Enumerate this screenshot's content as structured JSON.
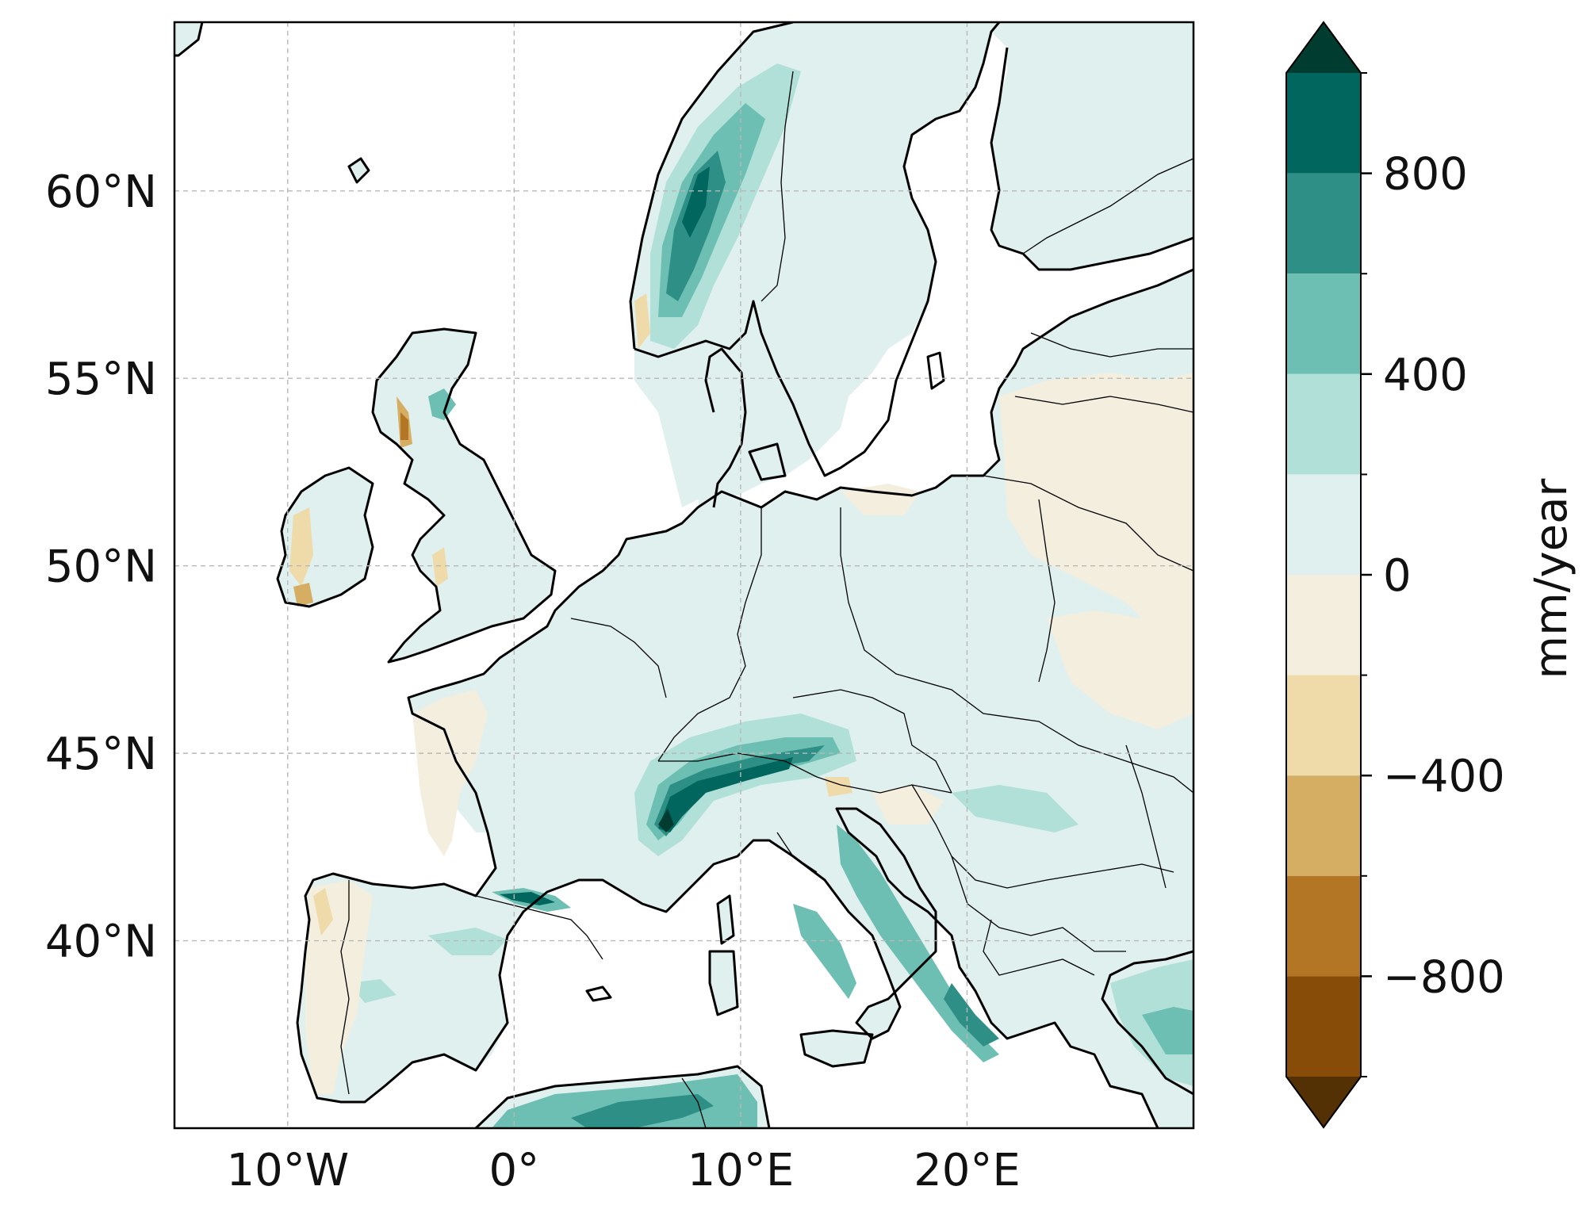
{
  "map": {
    "lon_range": [
      -15,
      30
    ],
    "lat_range": [
      35,
      64.5
    ],
    "lon_ticks": [
      {
        "value": -10,
        "label": "10°W"
      },
      {
        "value": 0,
        "label": "0°"
      },
      {
        "value": 10,
        "label": "10°E"
      },
      {
        "value": 20,
        "label": "20°E"
      }
    ],
    "lat_ticks": [
      {
        "value": 40,
        "label": "40°N"
      },
      {
        "value": 45,
        "label": "45°N"
      },
      {
        "value": 50,
        "label": "50°N"
      },
      {
        "value": 55,
        "label": "55°N"
      },
      {
        "value": 60,
        "label": "60°N"
      }
    ],
    "gridlines": true,
    "field": "precipitation change",
    "colormap": "BrBG"
  },
  "colorbar": {
    "label": "mm/year",
    "ticks": [
      {
        "value": 800,
        "label": "800"
      },
      {
        "value": 400,
        "label": "400"
      },
      {
        "value": 0,
        "label": "0"
      },
      {
        "value": -400,
        "label": "−400"
      },
      {
        "value": -800,
        "label": "−800"
      }
    ],
    "bins": [
      {
        "from": 800,
        "to": 1000,
        "color": "#00665e"
      },
      {
        "from": 600,
        "to": 800,
        "color": "#2d8f85"
      },
      {
        "from": 400,
        "to": 600,
        "color": "#6cbfb2"
      },
      {
        "from": 200,
        "to": 400,
        "color": "#b0e0d8"
      },
      {
        "from": 0,
        "to": 200,
        "color": "#e0f0ee"
      },
      {
        "from": -200,
        "to": 0,
        "color": "#f4eedf"
      },
      {
        "from": -400,
        "to": -200,
        "color": "#efdbaa"
      },
      {
        "from": -600,
        "to": -400,
        "color": "#d5ae64"
      },
      {
        "from": -800,
        "to": -600,
        "color": "#b37624"
      },
      {
        "from": -1000,
        "to": -800,
        "color": "#874c07"
      }
    ],
    "extend_max_color": "#003c30",
    "extend_min_color": "#543005"
  }
}
